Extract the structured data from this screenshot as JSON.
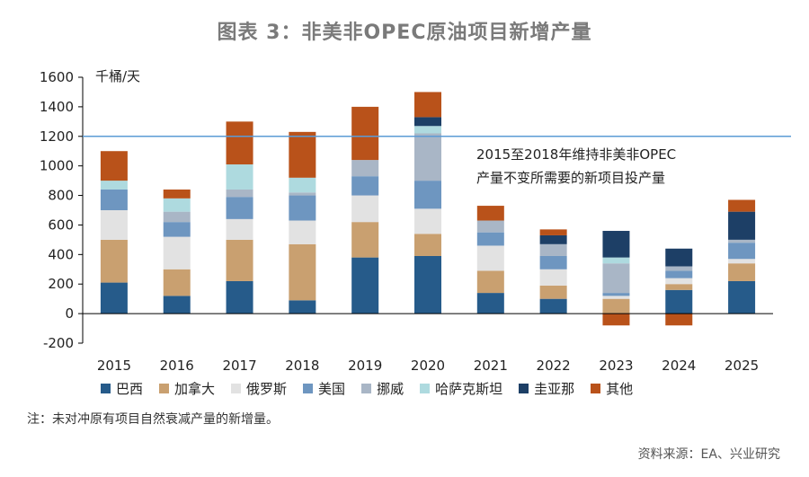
{
  "title": "图表 3：非美非OPEC原油项目新增产量",
  "note": "注：未对冲原有项目自然衰减产量的新增量。",
  "source": "资料来源：EA、兴业研究",
  "chart_data": {
    "type": "bar",
    "stacked": true,
    "unit_label": "千桶/天",
    "categories": [
      "2015",
      "2016",
      "2017",
      "2018",
      "2019",
      "2020",
      "2021",
      "2022",
      "2023",
      "2024",
      "2025"
    ],
    "ylim": [
      -200,
      1600
    ],
    "yticks": [
      -200,
      0,
      200,
      400,
      600,
      800,
      1000,
      1200,
      1400,
      1600
    ],
    "reference_line": 1200,
    "annotation": [
      "2015至2018年维持非美非OPEC",
      "产量不变所需要的新项目投产量"
    ],
    "legend_placement": "bottom",
    "series": [
      {
        "name": "巴西",
        "color": "#265b8a",
        "values": [
          210,
          120,
          220,
          90,
          380,
          390,
          140,
          100,
          0,
          160,
          220
        ]
      },
      {
        "name": "加拿大",
        "color": "#c9a070",
        "values": [
          290,
          180,
          280,
          380,
          240,
          150,
          150,
          90,
          100,
          40,
          120
        ]
      },
      {
        "name": "俄罗斯",
        "color": "#e2e2e2",
        "values": [
          200,
          220,
          140,
          160,
          180,
          170,
          170,
          110,
          20,
          40,
          30
        ]
      },
      {
        "name": "美国",
        "color": "#6e96c0",
        "values": [
          140,
          100,
          150,
          170,
          130,
          190,
          90,
          90,
          20,
          50,
          110
        ]
      },
      {
        "name": "挪威",
        "color": "#a9b6c6",
        "values": [
          0,
          70,
          50,
          20,
          110,
          320,
          80,
          80,
          200,
          30,
          20
        ]
      },
      {
        "name": "哈萨克斯坦",
        "color": "#aedadf",
        "values": [
          60,
          90,
          170,
          100,
          0,
          50,
          0,
          0,
          40,
          0,
          0
        ]
      },
      {
        "name": "圭亚那",
        "color": "#1d3f66",
        "values": [
          0,
          0,
          0,
          0,
          0,
          60,
          0,
          60,
          180,
          120,
          190
        ]
      },
      {
        "name": "其他",
        "color": "#b9521a",
        "values": [
          200,
          60,
          290,
          310,
          360,
          170,
          100,
          40,
          -80,
          -80,
          80
        ]
      }
    ]
  }
}
